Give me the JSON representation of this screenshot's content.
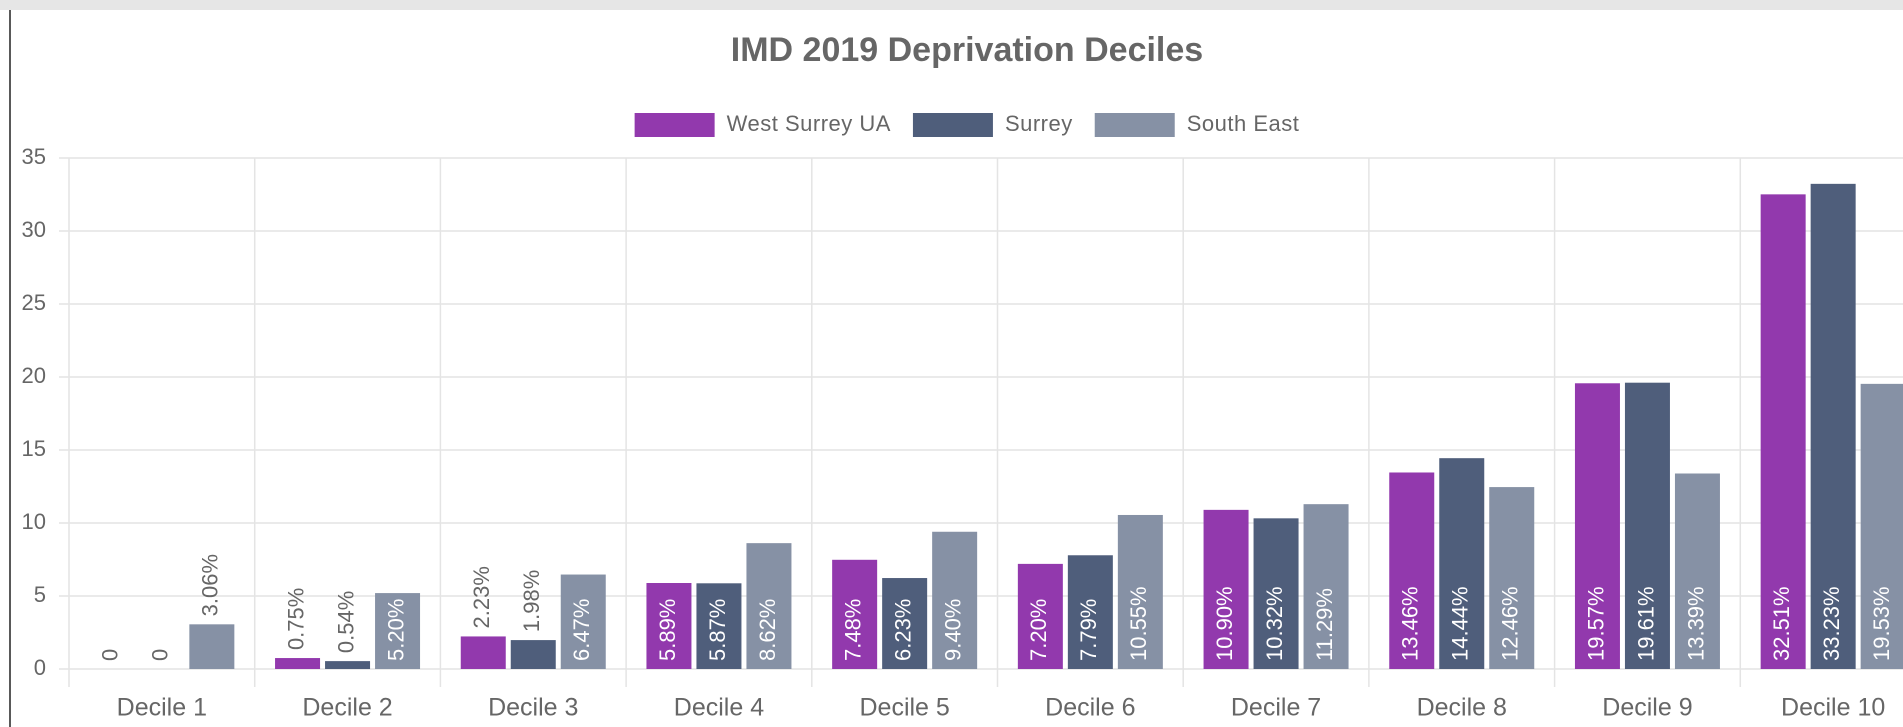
{
  "chart_data": {
    "type": "bar",
    "title": "IMD 2019 Deprivation Deciles",
    "categories": [
      "Decile 1",
      "Decile 2",
      "Decile 3",
      "Decile 4",
      "Decile 5",
      "Decile 6",
      "Decile 7",
      "Decile 8",
      "Decile 9",
      "Decile 10"
    ],
    "series": [
      {
        "name": "West Surrey UA",
        "color": "#9239ad",
        "values": [
          0,
          0.75,
          2.23,
          5.89,
          7.48,
          7.2,
          10.9,
          13.46,
          19.57,
          32.51
        ],
        "value_labels": [
          "0",
          "0.75%",
          "2.23%",
          "5.89%",
          "7.48%",
          "7.20%",
          "10.90%",
          "13.46%",
          "19.57%",
          "32.51%"
        ]
      },
      {
        "name": "Surrey",
        "color": "#4f5e7b",
        "values": [
          0,
          0.54,
          1.98,
          5.87,
          6.23,
          7.79,
          10.32,
          14.44,
          19.61,
          33.23
        ],
        "value_labels": [
          "0",
          "0.54%",
          "1.98%",
          "5.87%",
          "6.23%",
          "7.79%",
          "10.32%",
          "14.44%",
          "19.61%",
          "33.23%"
        ]
      },
      {
        "name": "South East",
        "color": "#8691a5",
        "values": [
          3.06,
          5.2,
          6.47,
          8.62,
          9.4,
          10.55,
          11.29,
          12.46,
          13.39,
          19.53
        ],
        "value_labels": [
          "3.06%",
          "5.20%",
          "6.47%",
          "8.62%",
          "9.40%",
          "10.55%",
          "11.29%",
          "12.46%",
          "13.39%",
          "19.53%"
        ]
      }
    ],
    "ylim": [
      0,
      35
    ],
    "yticks": [
      0,
      5,
      10,
      15,
      20,
      25,
      30,
      35
    ],
    "grid": true,
    "legend": "top"
  }
}
